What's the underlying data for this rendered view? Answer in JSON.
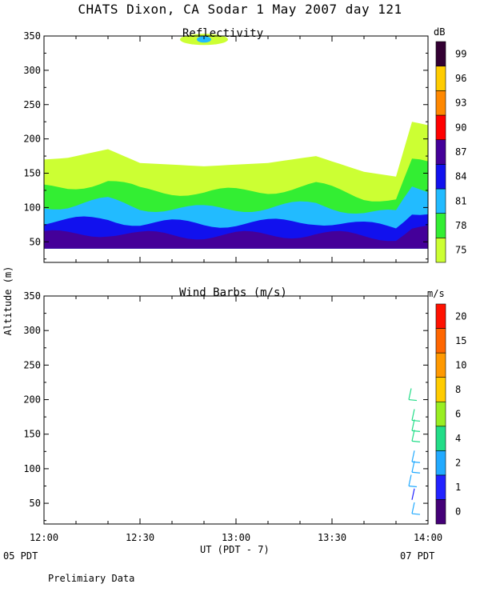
{
  "header": {
    "title": "CHATS Dixon, CA  Sodar   1 May 2007  day 121",
    "footnote": "Prelimiary Data",
    "date_start": "05 PDT",
    "date_end": "07 PDT",
    "xaxis_label": "UT  (PDT - 7)",
    "yaxis_label": "Altitude (m)"
  },
  "chart_data": [
    {
      "type": "heatmap",
      "title": "Reflectivity",
      "xlim": [
        "12:00",
        "14:00"
      ],
      "ylim": [
        20,
        350
      ],
      "x_ticks": [
        "12:00",
        "12:30",
        "13:00",
        "13:30",
        "14:00"
      ],
      "y_ticks": [
        50,
        100,
        150,
        200,
        250,
        300,
        350
      ],
      "colorbar": {
        "unit": "dB",
        "levels": [
          75,
          78,
          81,
          84,
          87,
          90,
          93,
          96,
          99
        ],
        "colors": [
          "#ccff33",
          "#33ee33",
          "#22bbff",
          "#1111ee",
          "#440099",
          "#ff0000",
          "#ff8800",
          "#ffcc00",
          "#330033"
        ]
      },
      "data_coverage": {
        "min_altitude": 40,
        "max_altitude_by_time": [
          [
            "12:00",
            170
          ],
          [
            "12:07",
            172
          ],
          [
            "12:20",
            185
          ],
          [
            "12:30",
            165
          ],
          [
            "12:50",
            160
          ],
          [
            "13:10",
            165
          ],
          [
            "13:25",
            175
          ],
          [
            "13:40",
            152
          ],
          [
            "13:50",
            145
          ],
          [
            "13:55",
            225
          ],
          [
            "14:00",
            220
          ]
        ],
        "isolated_echo": {
          "time": "12:50",
          "altitude": 345,
          "level": 81
        }
      }
    },
    {
      "type": "scatter",
      "title": "Wind Barbs (m/s)",
      "xlim": [
        "12:00",
        "14:00"
      ],
      "ylim": [
        20,
        350
      ],
      "x_ticks": [
        "12:00",
        "12:30",
        "13:00",
        "13:30",
        "14:00"
      ],
      "y_ticks": [
        50,
        100,
        150,
        200,
        250,
        300,
        350
      ],
      "colorbar": {
        "unit": "m/s",
        "levels": [
          0,
          1,
          2,
          4,
          6,
          8,
          10,
          15,
          20
        ],
        "colors": [
          "#440077",
          "#2222ff",
          "#22aaff",
          "#22dd88",
          "#99ee22",
          "#ffcc00",
          "#ff9900",
          "#ff6600",
          "#ff1100"
        ]
      },
      "points": [
        {
          "time": "13:54",
          "altitude": 200,
          "speed": 5
        },
        {
          "time": "13:55",
          "altitude": 170,
          "speed": 4
        },
        {
          "time": "13:55",
          "altitude": 155,
          "speed": 4
        },
        {
          "time": "13:55",
          "altitude": 140,
          "speed": 4
        },
        {
          "time": "13:55",
          "altitude": 110,
          "speed": 3
        },
        {
          "time": "13:55",
          "altitude": 95,
          "speed": 3
        },
        {
          "time": "13:54",
          "altitude": 75,
          "speed": 3
        },
        {
          "time": "13:55",
          "altitude": 55,
          "speed": 1
        },
        {
          "time": "13:55",
          "altitude": 35,
          "speed": 2
        }
      ]
    }
  ]
}
